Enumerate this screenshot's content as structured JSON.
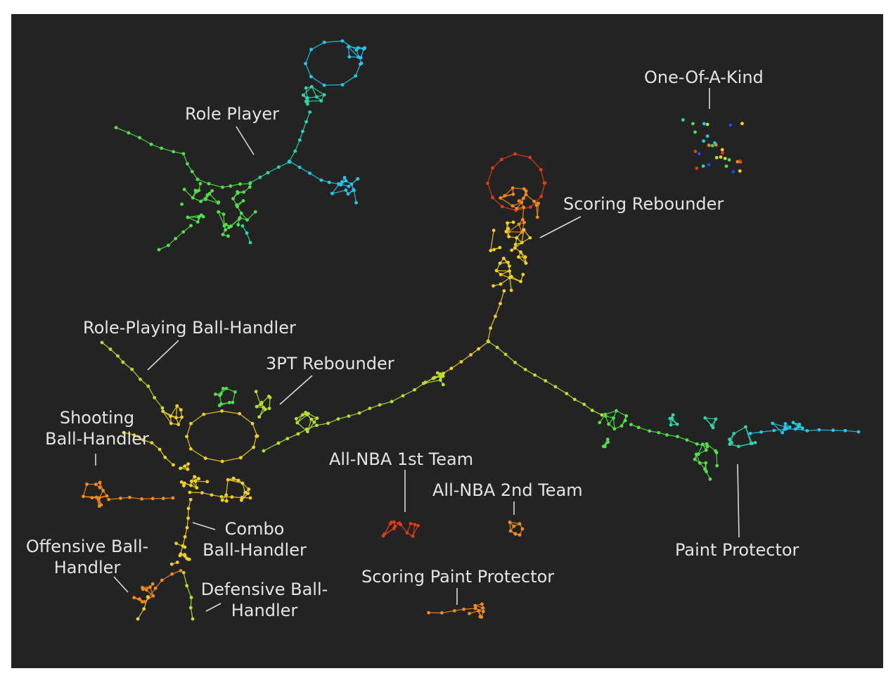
{
  "labels": {
    "role_player": "Role Player",
    "one_of_a_kind": "One-Of-A-Kind",
    "scoring_rebounder": "Scoring Rebounder",
    "role_playing_ball_handler": "Role-Playing Ball-Handler",
    "three_pt_rebounder": "3PT Rebounder",
    "shooting_ball_handler_1": "Shooting",
    "shooting_ball_handler_2": "Ball-Handler",
    "all_nba_1st": "All-NBA 1st Team",
    "all_nba_2nd": "All-NBA 2nd Team",
    "combo_ball_handler_1": "Combo",
    "combo_ball_handler_2": "Ball-Handler",
    "offensive_ball_handler_1": "Offensive Ball-",
    "offensive_ball_handler_2": "Handler",
    "defensive_ball_handler_1": "Defensive Ball-",
    "defensive_ball_handler_2": "Handler",
    "scoring_paint_protector": "Scoring Paint Protector",
    "paint_protector": "Paint Protector"
  },
  "colors": {
    "background": "#232323",
    "label_text": "#e4e4e4",
    "red": "#e03a17",
    "orange": "#f08a1c",
    "yellow": "#f0d21e",
    "yellow_green": "#b8e02a",
    "green": "#50e048",
    "teal": "#2ad6a8",
    "cyan": "#22c8e8",
    "blue": "#2448e0"
  }
}
